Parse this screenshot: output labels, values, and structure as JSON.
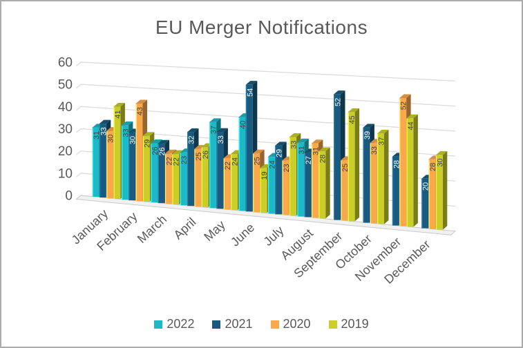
{
  "window": {
    "background": "#FFFFFF",
    "border_color": "#ABABAB"
  },
  "chart_data": {
    "type": "bar",
    "style": "3d-clustered-column",
    "title": "EU Merger Notifications",
    "categories": [
      "January",
      "February",
      "March",
      "April",
      "May",
      "June",
      "July",
      "August",
      "September",
      "October",
      "November",
      "December"
    ],
    "series": [
      {
        "name": "2022",
        "color": "#1EB9C6",
        "values": [
          31,
          33,
          26,
          23,
          37,
          40,
          24,
          31,
          null,
          null,
          null,
          null
        ]
      },
      {
        "name": "2021",
        "color": "#1A5A7E",
        "values": [
          33,
          30,
          26,
          32,
          33,
          54,
          29,
          27,
          52,
          39,
          28,
          20
        ]
      },
      {
        "name": "2020",
        "color": "#F9A84B",
        "values": [
          30,
          43,
          22,
          25,
          22,
          25,
          23,
          31,
          25,
          33,
          52,
          28
        ]
      },
      {
        "name": "2019",
        "color": "#C9CE2B",
        "values": [
          41,
          29,
          22,
          26,
          24,
          19,
          33,
          28,
          45,
          37,
          44,
          30
        ]
      }
    ],
    "ylim": [
      0,
      60
    ],
    "yticks": [
      0,
      10,
      20,
      30,
      40,
      50,
      60
    ],
    "grid": true,
    "legend_position": "bottom",
    "data_labels": true,
    "label_color_on_light": "#404040",
    "label_color_on_dark": "#FFFFFF",
    "axis_text_color": "#595959",
    "gridline_color": "#D9D9D9",
    "floor_fill": "#F1F1F1",
    "floor_edge": "#C9C9C9"
  }
}
